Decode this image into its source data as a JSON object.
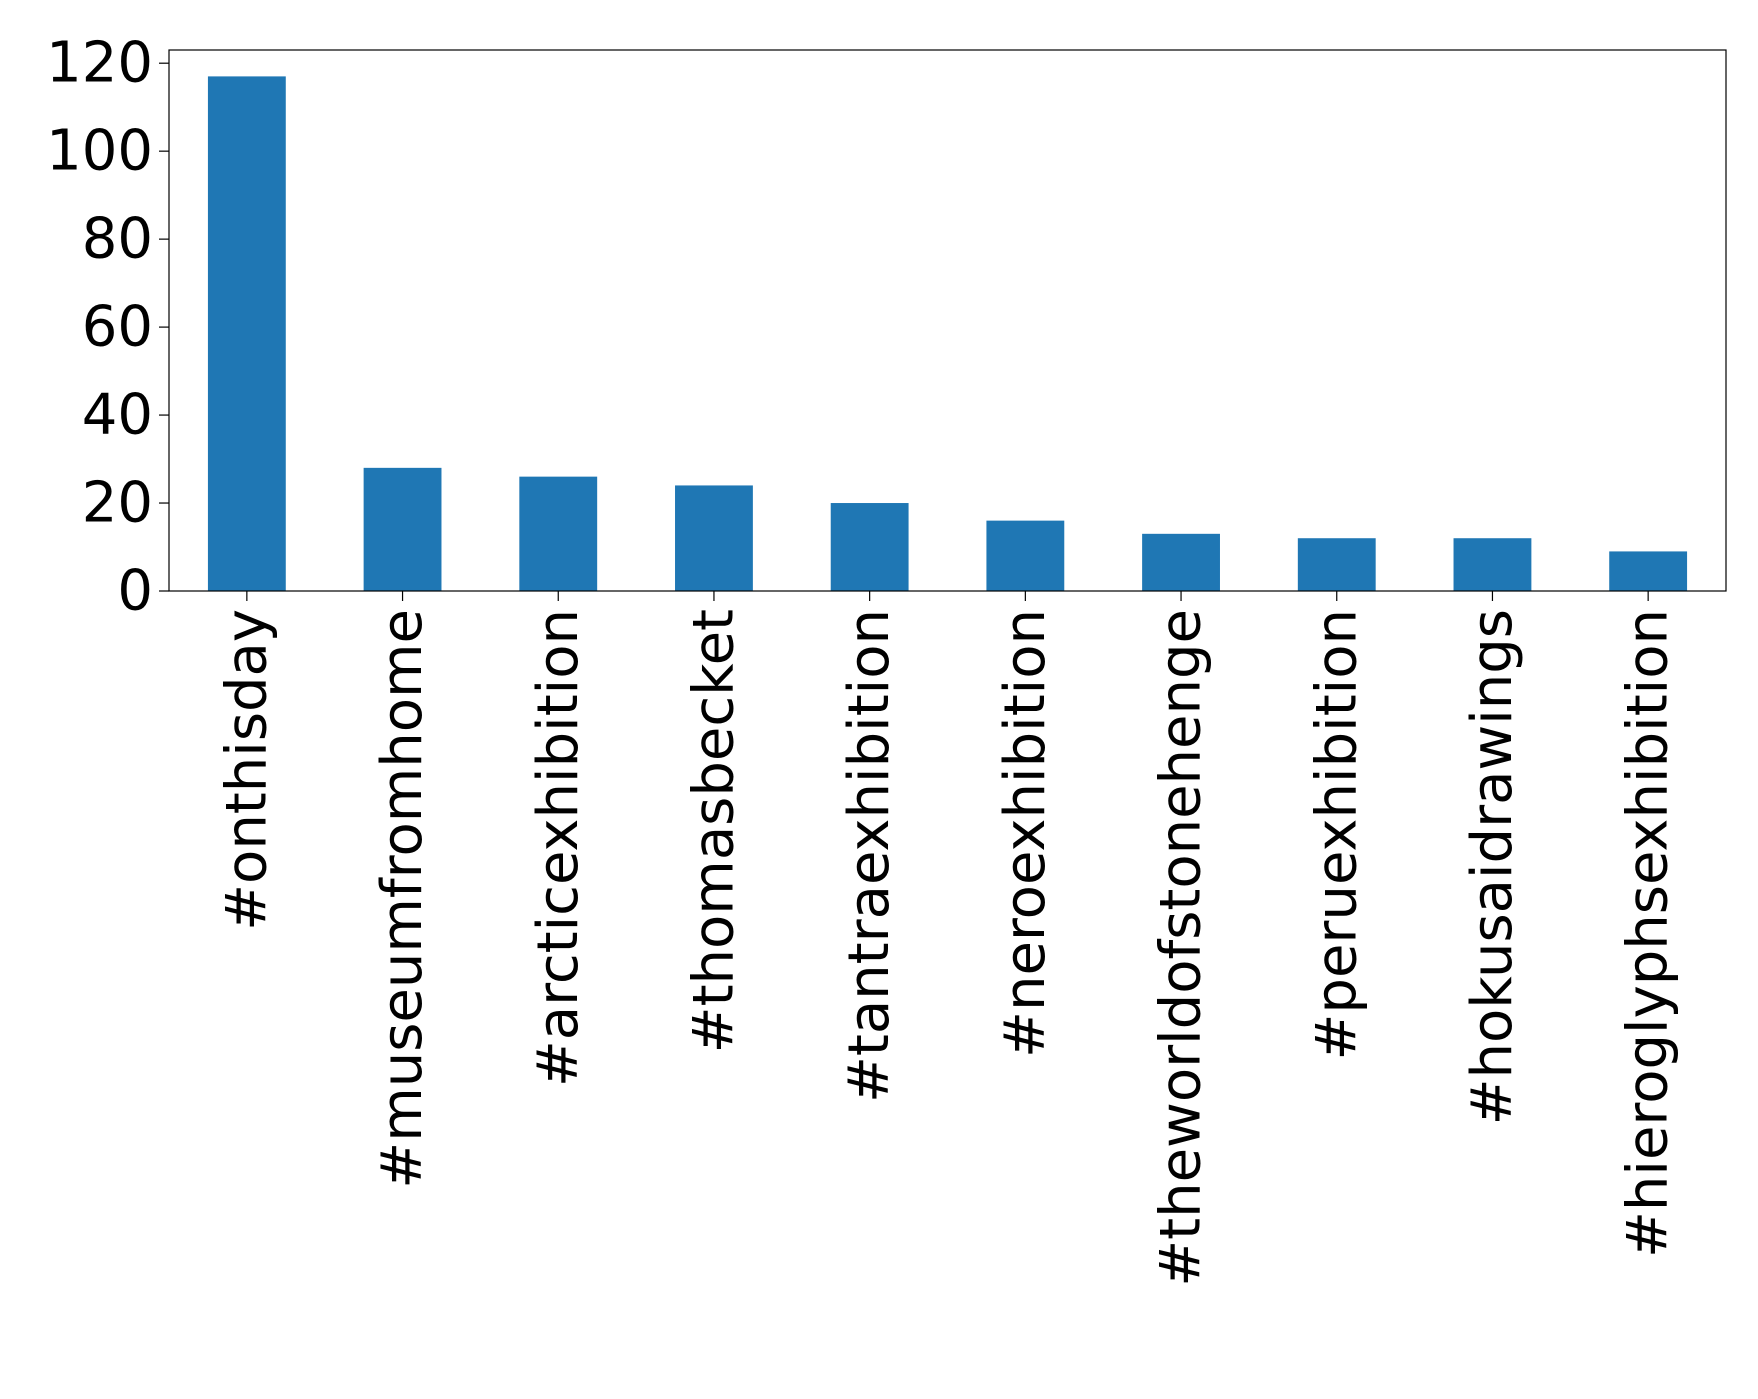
{
  "chart_data": {
    "type": "bar",
    "title": "",
    "xlabel": "",
    "ylabel": "",
    "categories": [
      "#onthisday",
      "#museumfromhome",
      "#arcticexhibition",
      "#thomasbecket",
      "#tantraexhibition",
      "#neroexhibition",
      "#theworldofstonehenge",
      "#peruexhibition",
      "#hokusaidrawings",
      "#hieroglyphsexhibition"
    ],
    "values": [
      117,
      28,
      26,
      24,
      20,
      16,
      13,
      12,
      12,
      9
    ],
    "ylim": [
      0,
      123
    ],
    "yticks": [
      0,
      20,
      40,
      60,
      80,
      100,
      120
    ],
    "grid": false,
    "legend": "none",
    "colors": {
      "bar": "#1f77b4",
      "axis": "#000000",
      "background": "#ffffff"
    }
  }
}
